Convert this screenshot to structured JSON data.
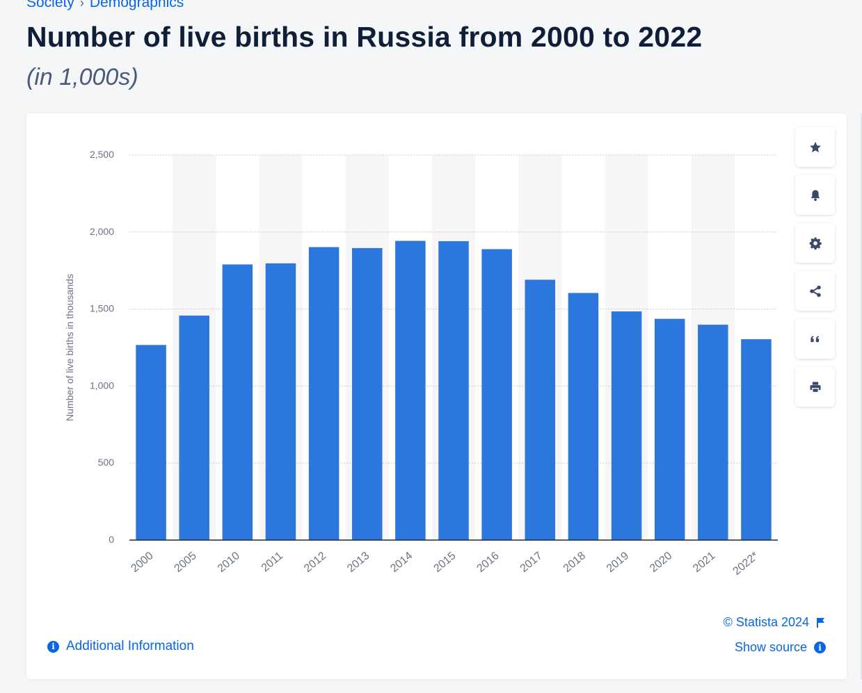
{
  "breadcrumb": {
    "item1": "Society",
    "separator": "›",
    "item2": "Demographics"
  },
  "page": {
    "title": "Number of live births in Russia from 2000 to 2022",
    "subtitle": "(in 1,000s)"
  },
  "colors": {
    "bar": "#2b77de",
    "accent": "#0666e5",
    "title": "#0f1f3a",
    "stripe": "#f6f6f7",
    "grid": "#c7ccd3"
  },
  "chart_data": {
    "type": "bar",
    "categories": [
      "2000",
      "2005",
      "2010",
      "2011",
      "2012",
      "2013",
      "2014",
      "2015",
      "2016",
      "2017",
      "2018",
      "2019",
      "2020",
      "2021",
      "2022*"
    ],
    "values": [
      1266.8,
      1457.4,
      1789.6,
      1796.6,
      1902.1,
      1895.8,
      1942.7,
      1940.6,
      1888.7,
      1690.3,
      1604.3,
      1484.5,
      1436.5,
      1398.3,
      1304.0
    ],
    "title": "Number of live births in Russia from 2000 to 2022",
    "subtitle": "(in 1,000s)",
    "ylabel": "Number of live births in thousands",
    "xlabel": "",
    "ylim": [
      0,
      2500
    ],
    "yticks": [
      0,
      500,
      1000,
      1500,
      2000,
      2500
    ],
    "ytick_labels": [
      "0",
      "500",
      "1,000",
      "1,500",
      "2,000",
      "2,500"
    ],
    "grid": true,
    "legend": "none"
  },
  "toolbar": {
    "favorite_icon": "star-icon",
    "notify_icon": "bell-icon",
    "settings_icon": "gear-icon",
    "share_icon": "share-icon",
    "cite_icon": "quote-icon",
    "print_icon": "printer-icon"
  },
  "footer": {
    "copyright": "© Statista 2024",
    "show_source": "Show source",
    "additional_info": "Additional Information"
  }
}
